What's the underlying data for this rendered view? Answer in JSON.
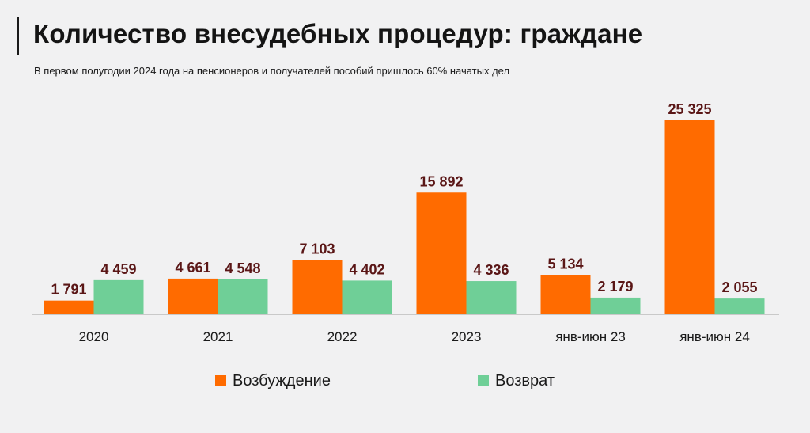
{
  "header": {
    "title": "Количество внесудебных процедур: граждане",
    "subtitle": "В первом полугодии 2024 года на пенсионеров и получателей пособий пришлось 60% начатых дел"
  },
  "colors": {
    "series1": "#ff6b00",
    "series2": "#6fcf97",
    "axis": "#c9c9c9",
    "label": "#5a1616"
  },
  "chart_data": {
    "type": "bar",
    "categories": [
      "2020",
      "2021",
      "2022",
      "2023",
      "янв-июн 23",
      "янв-июн 24"
    ],
    "series": [
      {
        "name": "Возбуждение",
        "values": [
          1791,
          4661,
          7103,
          15892,
          5134,
          25325
        ],
        "labels": [
          "1 791",
          "4 661",
          "7 103",
          "15 892",
          "5 134",
          "25 325"
        ]
      },
      {
        "name": "Возврат",
        "values": [
          4459,
          4548,
          4402,
          4336,
          2179,
          2055
        ],
        "labels": [
          "4 459",
          "4 548",
          "4 402",
          "4 336",
          "2 179",
          "2 055"
        ]
      }
    ],
    "ylim": [
      0,
      25325
    ],
    "grid": false,
    "legend_position": "bottom"
  }
}
